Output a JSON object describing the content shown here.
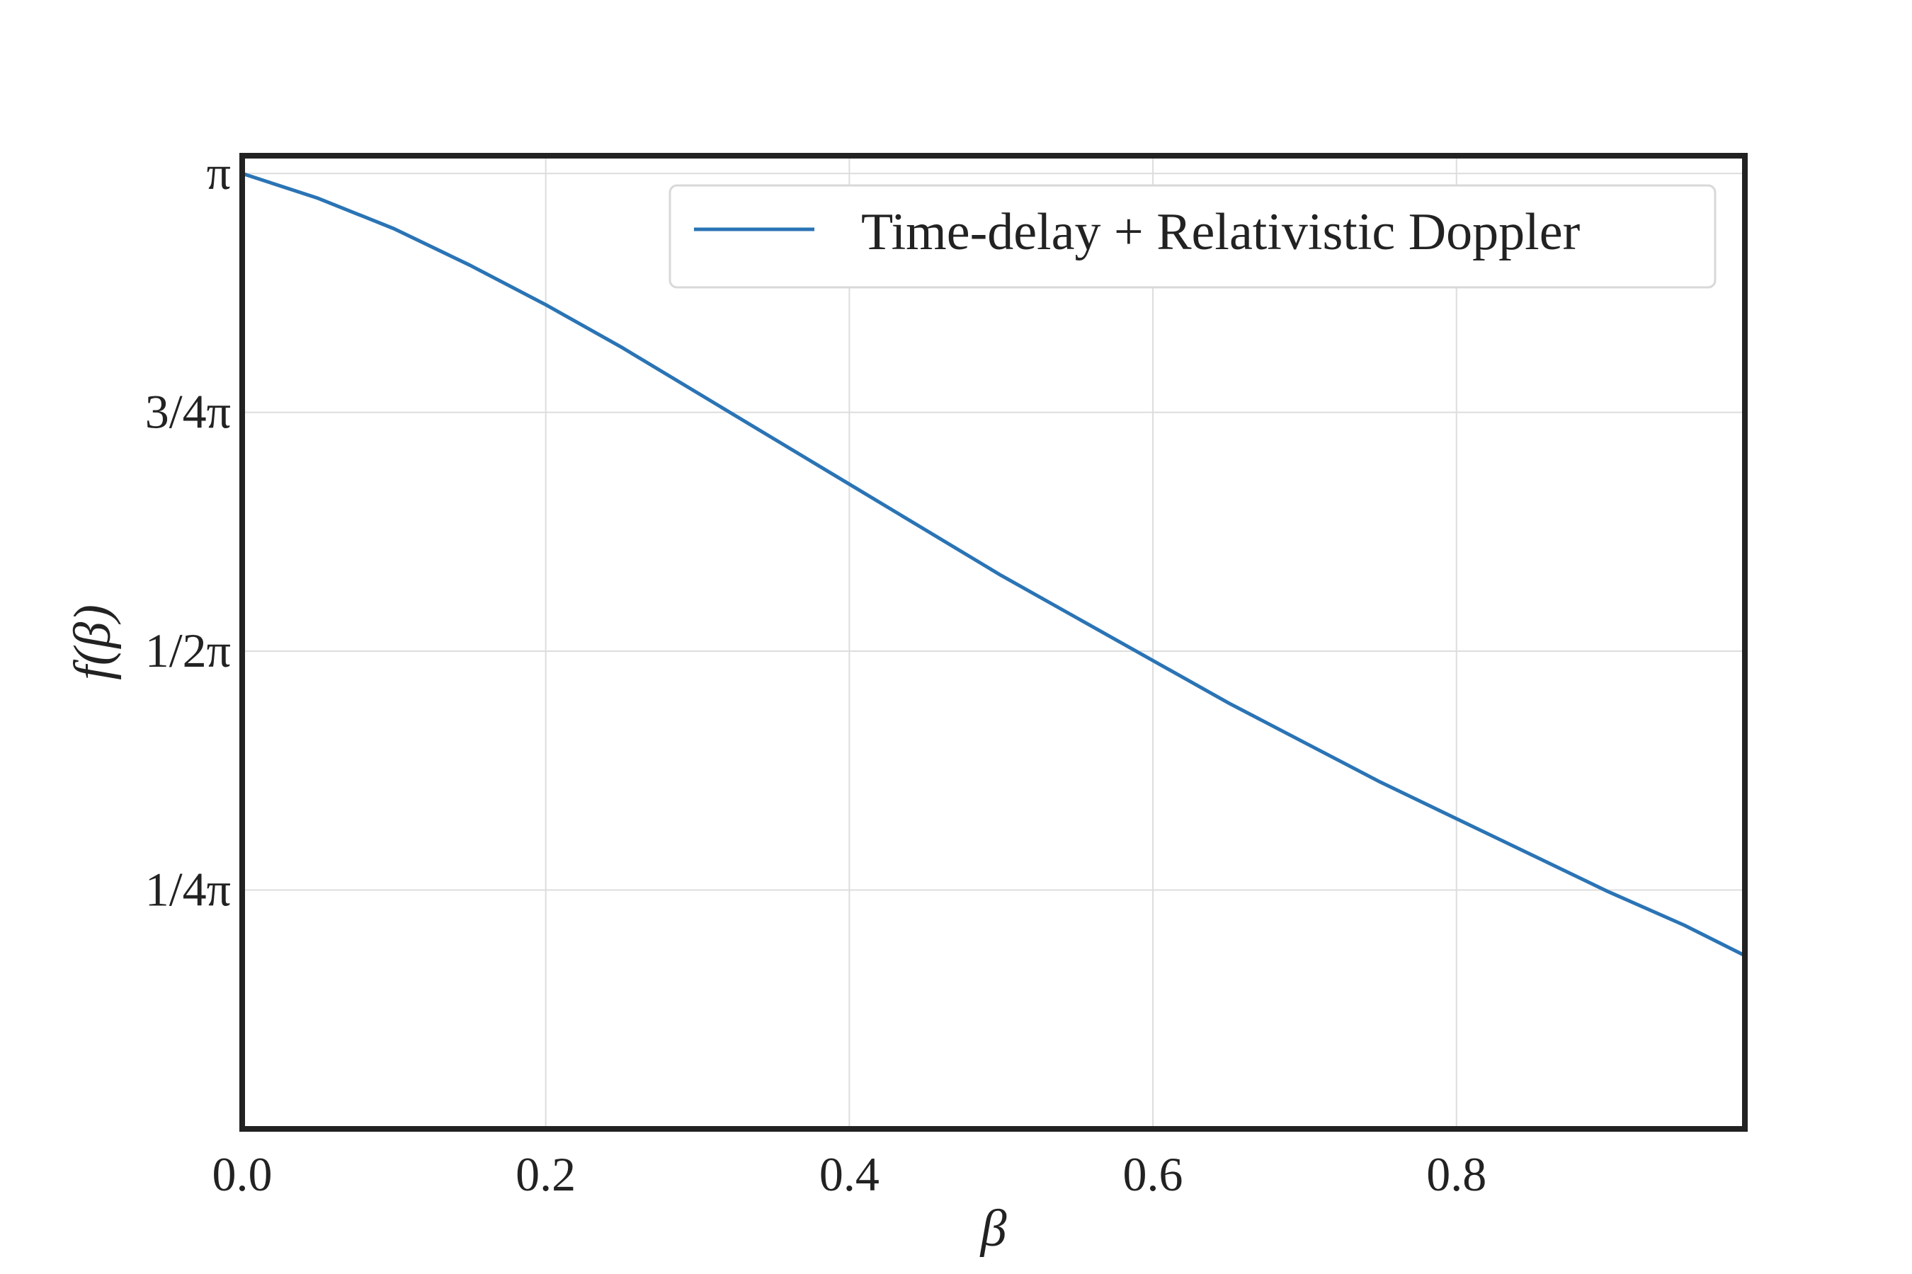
{
  "chart_data": {
    "type": "line",
    "xlabel": "β",
    "ylabel": "f(β)",
    "xlim": [
      0.0,
      0.99
    ],
    "ylim": [
      0.0,
      3.2
    ],
    "grid": true,
    "legend_position": "top-right",
    "x_ticks": [
      {
        "value": 0.0,
        "label": "0.0"
      },
      {
        "value": 0.2,
        "label": "0.2"
      },
      {
        "value": 0.4,
        "label": "0.4"
      },
      {
        "value": 0.6,
        "label": "0.6"
      },
      {
        "value": 0.8,
        "label": "0.8"
      }
    ],
    "y_ticks": [
      {
        "value": 0.7854,
        "label": "1/4π"
      },
      {
        "value": 1.5708,
        "label": "1/2π"
      },
      {
        "value": 2.3562,
        "label": "3/4π"
      },
      {
        "value": 3.1416,
        "label": "π"
      }
    ],
    "series": [
      {
        "name": "Time-delay + Relativistic Doppler",
        "color": "#2a74b5",
        "x": [
          0.0,
          0.05,
          0.1,
          0.15,
          0.2,
          0.25,
          0.3,
          0.35,
          0.4,
          0.45,
          0.5,
          0.55,
          0.6,
          0.65,
          0.7,
          0.75,
          0.8,
          0.85,
          0.9,
          0.95,
          0.99
        ],
        "y": [
          3.1416,
          3.06,
          2.96,
          2.84,
          2.71,
          2.57,
          2.42,
          2.27,
          2.12,
          1.97,
          1.82,
          1.68,
          1.54,
          1.4,
          1.27,
          1.14,
          1.02,
          0.9,
          0.78,
          0.67,
          0.57
        ]
      }
    ]
  }
}
